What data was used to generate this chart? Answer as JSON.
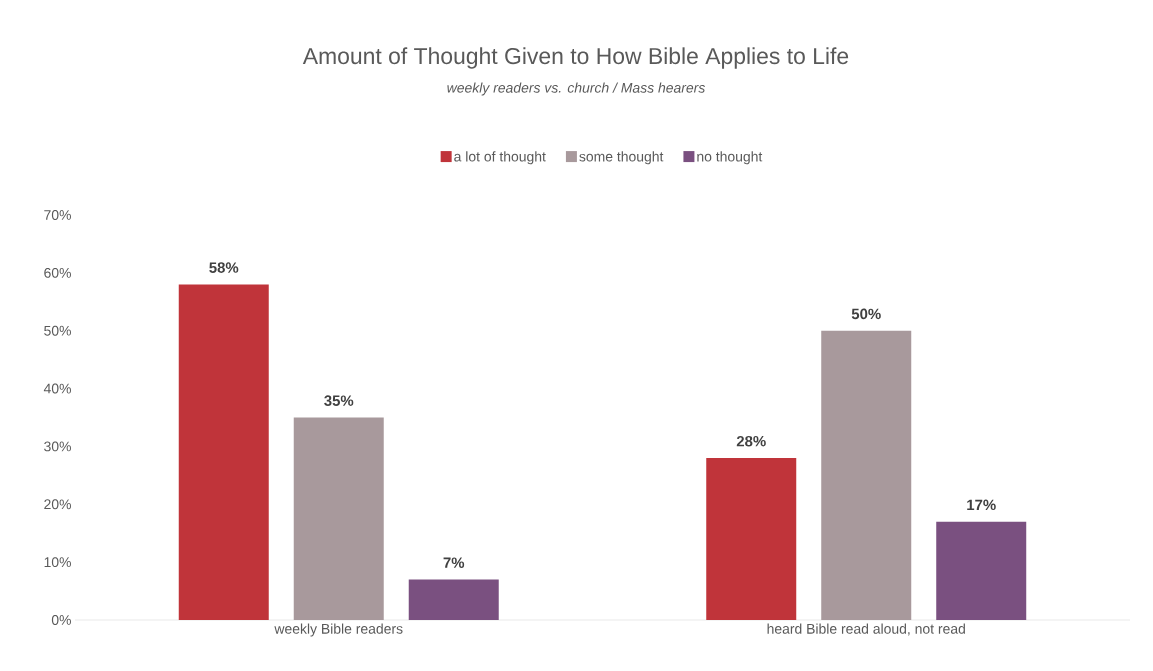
{
  "chart_data": {
    "type": "bar",
    "title": "Amount of Thought Given to How Bible Applies to Life",
    "subtitle": "weekly readers vs. church / Mass hearers",
    "categories": [
      "weekly Bible readers",
      "heard Bible read aloud, not read"
    ],
    "series": [
      {
        "name": "a lot of thought",
        "color": "#c0343a",
        "values": [
          58,
          28
        ],
        "value_labels": [
          "58%",
          "28%"
        ]
      },
      {
        "name": "some thought",
        "color": "#a8999c",
        "values": [
          35,
          50
        ],
        "value_labels": [
          "35%",
          "50%"
        ]
      },
      {
        "name": "no thought",
        "color": "#7a5080",
        "values": [
          7,
          17
        ],
        "value_labels": [
          "7%",
          "17%"
        ]
      }
    ],
    "ylim": [
      0,
      70
    ],
    "yticks": [
      {
        "value": 0,
        "label": "0%"
      },
      {
        "value": 10,
        "label": "10%"
      },
      {
        "value": 20,
        "label": "20%"
      },
      {
        "value": 30,
        "label": "30%"
      },
      {
        "value": 40,
        "label": "40%"
      },
      {
        "value": 50,
        "label": "50%"
      },
      {
        "value": 60,
        "label": "60%"
      },
      {
        "value": 70,
        "label": "70%"
      }
    ],
    "grid": false,
    "legend": "top"
  }
}
